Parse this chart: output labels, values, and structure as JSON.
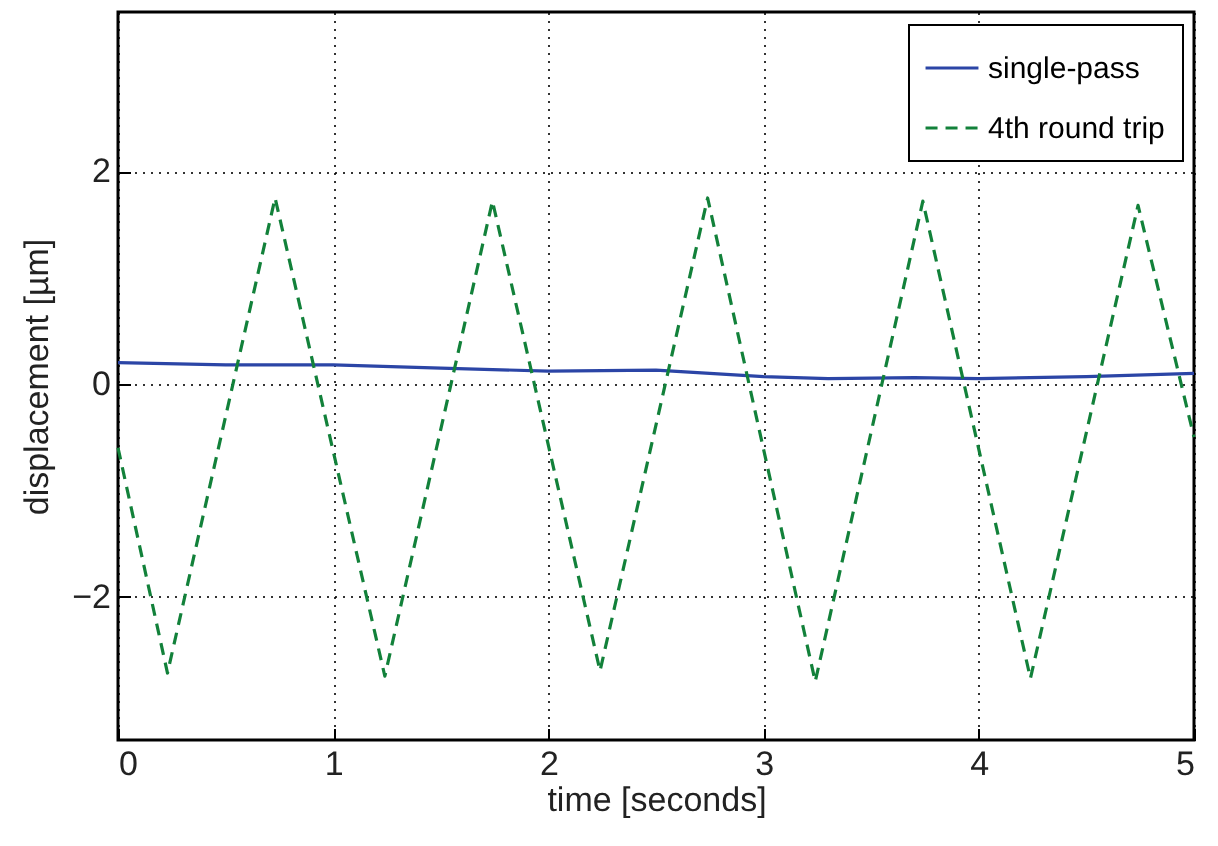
{
  "chart_data": {
    "type": "line",
    "xlabel": "time [seconds]",
    "ylabel": "displacement [µm]",
    "xlim": [
      0,
      5
    ],
    "ylim": [
      -3.35,
      3.5
    ],
    "xticks": [
      0,
      1,
      2,
      3,
      4,
      5
    ],
    "yticks": [
      -2,
      0,
      2
    ],
    "grid": true,
    "legend": "top right",
    "series": [
      {
        "name": "single-pass",
        "color": "#2b45a6",
        "line_style": "solid",
        "x": [
          0,
          0.5,
          1,
          1.5,
          2,
          2.5,
          3,
          3.3,
          3.7,
          4,
          4.5,
          5
        ],
        "values": [
          0.2,
          0.18,
          0.18,
          0.15,
          0.12,
          0.13,
          0.07,
          0.05,
          0.06,
          0.05,
          0.07,
          0.1
        ]
      },
      {
        "name": "4th round trip",
        "color": "#12813a",
        "line_style": "dashed",
        "x": [
          0,
          0.23,
          0.73,
          1.24,
          1.74,
          2.24,
          2.74,
          3.24,
          3.74,
          4.24,
          4.74,
          5
        ],
        "values": [
          -0.6,
          -2.72,
          1.75,
          -2.75,
          1.72,
          -2.7,
          1.75,
          -2.8,
          1.72,
          -2.77,
          1.68,
          -0.5
        ]
      }
    ]
  }
}
